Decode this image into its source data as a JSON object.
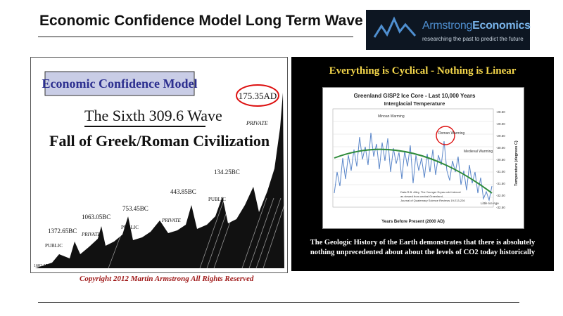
{
  "slide_title": "Economic Confidence Model Long Term Wave",
  "logo": {
    "name_part1": "Armstrong",
    "name_part2": "Economics",
    "tagline": "researching the past to predict the future"
  },
  "left_panel": {
    "banner": "Economic Confidence Model",
    "subtitle": "The Sixth 309.6 Wave",
    "heading": "Fall of Greek/Roman Civilization",
    "peak_labels": [
      "1682.25BC",
      "1372.65BC",
      "1063.05BC",
      "753.45BC",
      "443.85BC",
      "134.25BC",
      "175.35AD"
    ],
    "phase_labels": [
      "PUBLIC",
      "PRIVATE",
      "PUBLIC",
      "PRIVATE",
      "PUBLIC",
      "PRIVATE"
    ],
    "copyright": "Copyright 2012 Martin Armstrong All Rights Reserved"
  },
  "right_panel": {
    "headline": "Everything is Cyclical - Nothing is Linear",
    "chart_title": "Greenland GISP2 Ice Core - Last 10,000 Years",
    "chart_subtitle": "Interglacial Temperature",
    "xlabel": "Years Before Present (2000 AD)",
    "ylabel": "Temperature (degrees C)",
    "y_ticks": [
      "-28.50",
      "-29.00",
      "-29.50",
      "-30.00",
      "-30.50",
      "-31.00",
      "-31.50",
      "-32.00",
      "-32.50"
    ],
    "annotations": [
      "Minoan Warming",
      "Roman Warming",
      "Medieval Warming",
      "Little Ice Age"
    ],
    "source_note": [
      "Data R.B. Alley, The Younger Dryas cold interval",
      "as viewed from central Greenland,",
      "Journal of Quaternary Science Reviews 19:213-226"
    ],
    "caption_line1": "The Geologic History of the Earth demonstrates that there is absolutely",
    "caption_line2": "nothing unprecedented about about the levels of CO2 today historically"
  }
}
